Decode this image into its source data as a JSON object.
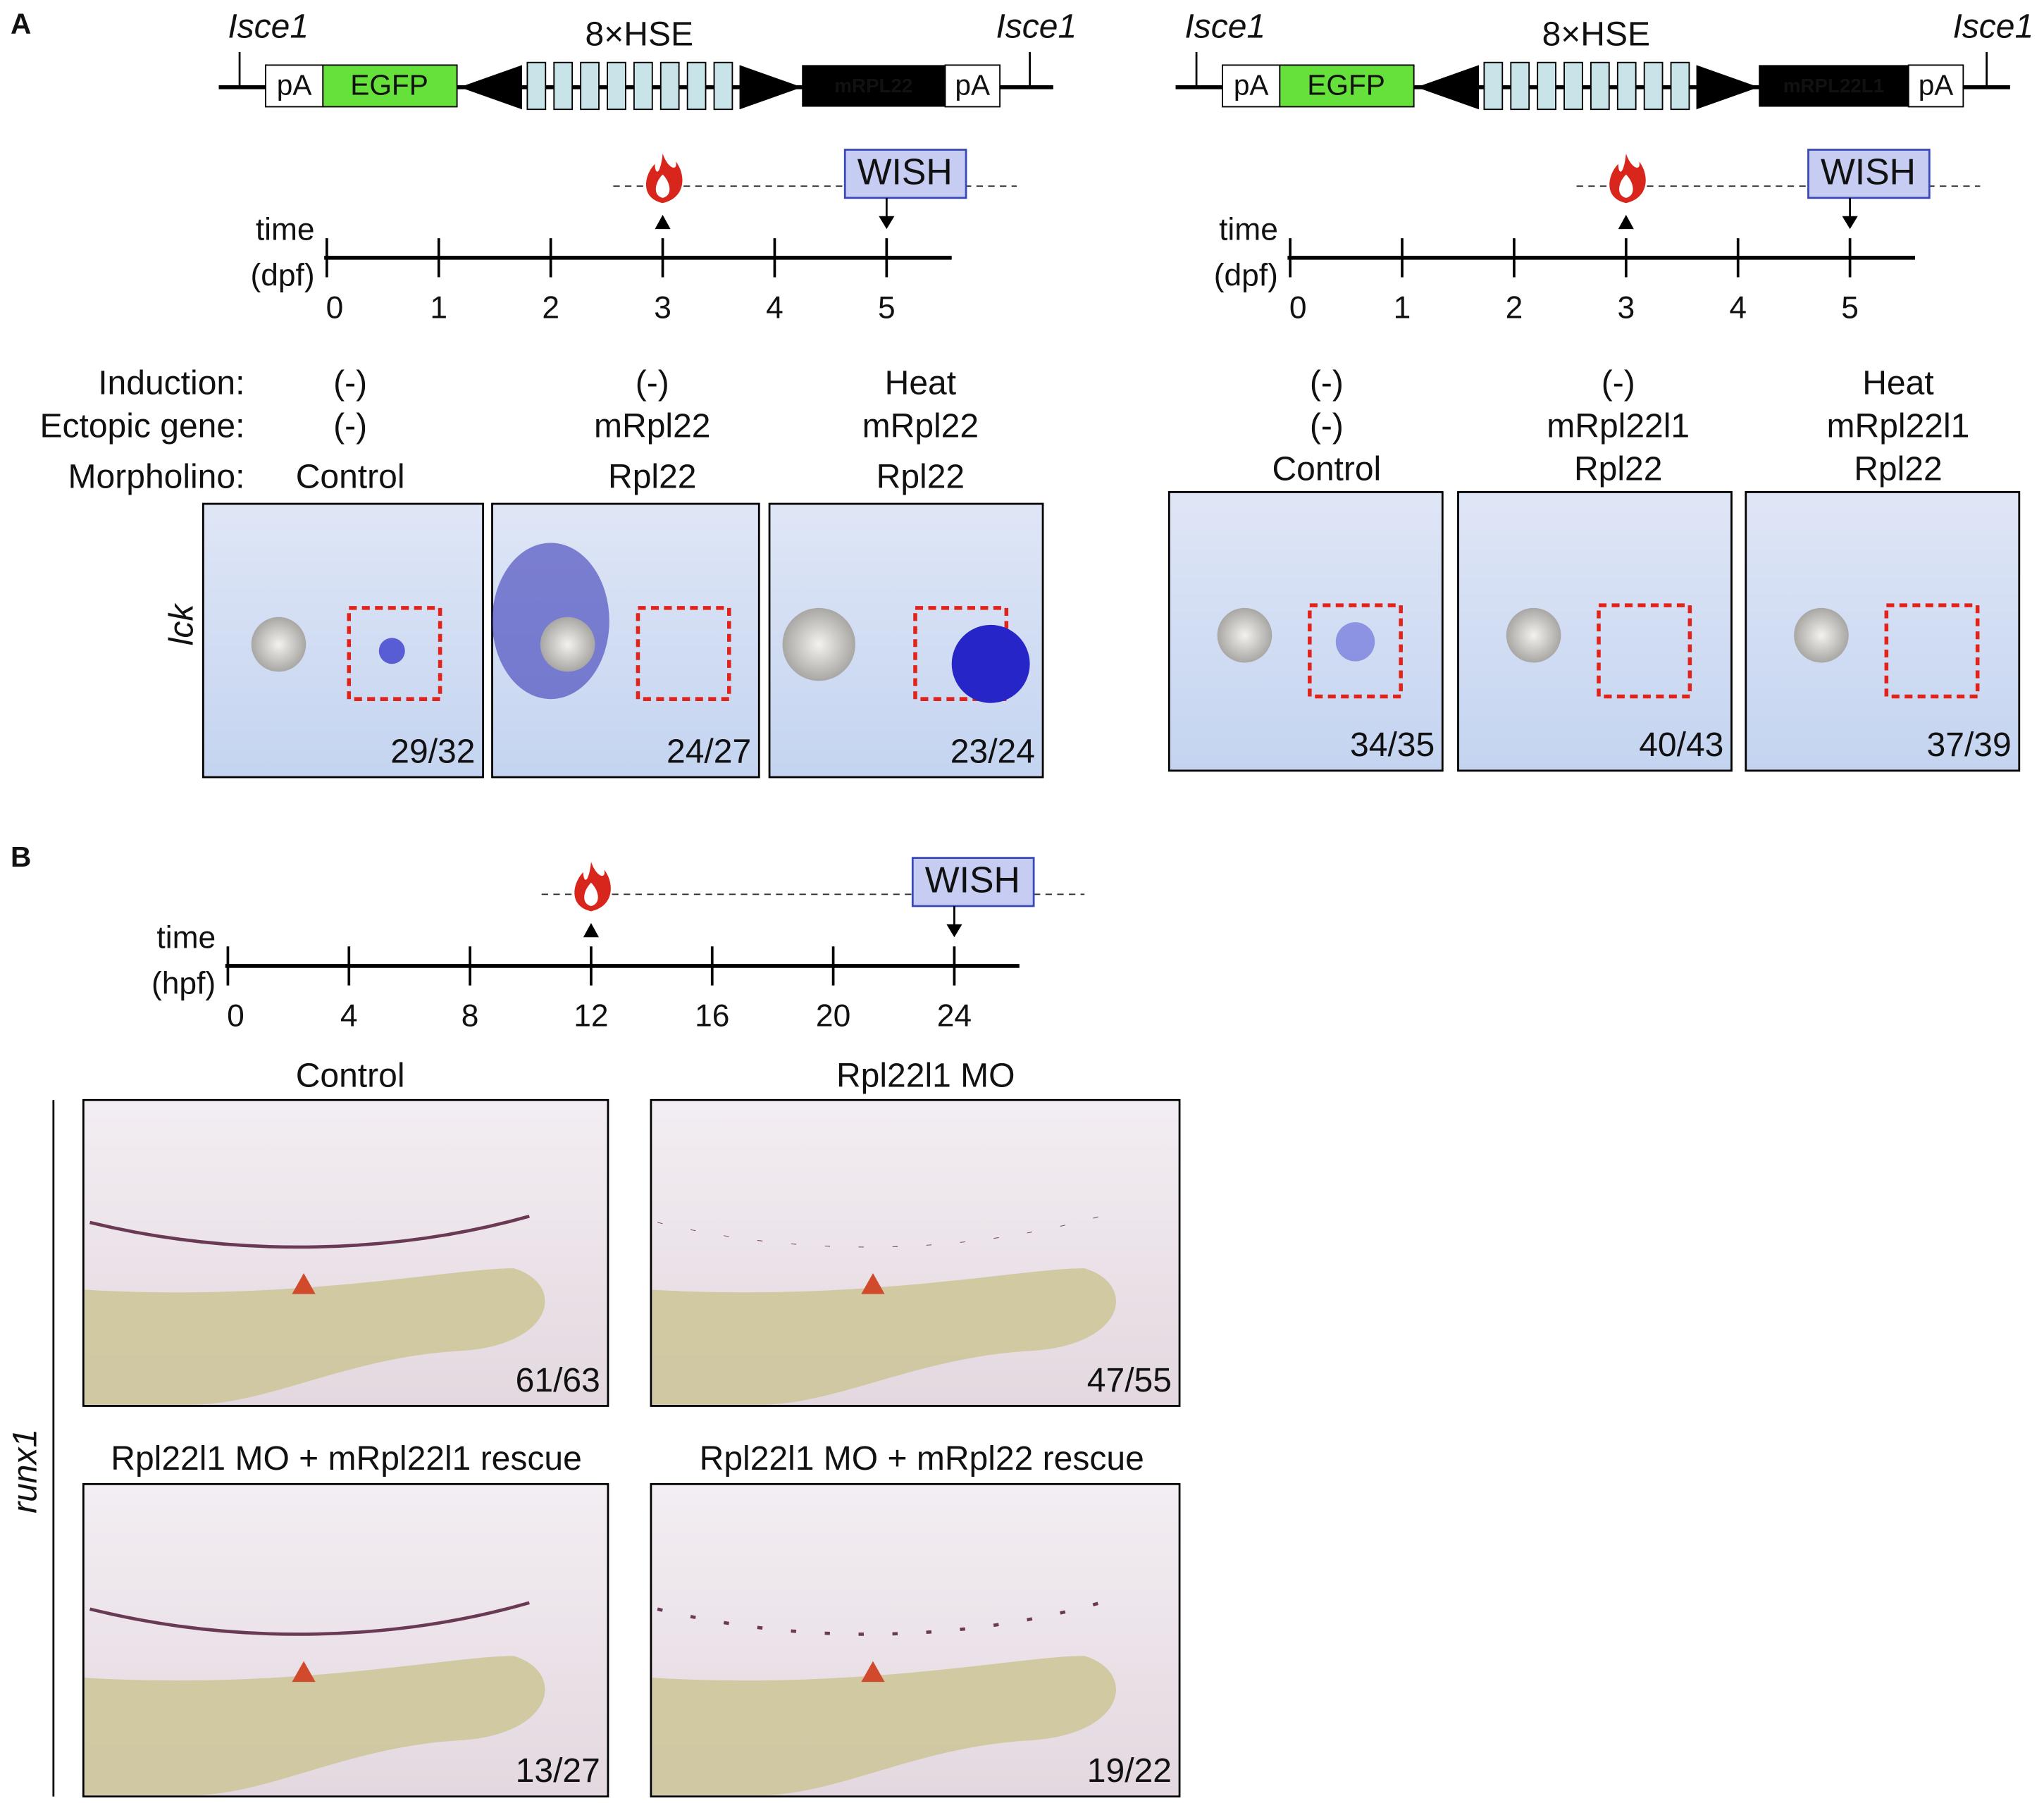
{
  "panel_a": {
    "label": "A",
    "constructs": [
      {
        "site_left": "Isce1",
        "site_right": "Isce1",
        "pa_left": "pA",
        "reporter": "EGFP",
        "promoter": "8×HSE",
        "gene": "mRPL22",
        "pa_right": "pA"
      },
      {
        "site_left": "Isce1",
        "site_right": "Isce1",
        "pa_left": "pA",
        "reporter": "EGFP",
        "promoter": "8×HSE",
        "gene": "mRPL22L1",
        "pa_right": "pA"
      }
    ],
    "timelines": [
      {
        "axis_label": [
          "time",
          "(dpf)"
        ],
        "ticks": [
          0,
          1,
          2,
          3,
          4,
          5
        ],
        "assay": "WISH"
      },
      {
        "axis_label": [
          "time",
          "(dpf)"
        ],
        "ticks": [
          0,
          1,
          2,
          3,
          4,
          5
        ],
        "assay": "WISH"
      }
    ],
    "row_labels": [
      "Induction:",
      "Ectopic gene:",
      "Morpholino:"
    ],
    "probe": "lck",
    "groups": [
      [
        {
          "conditions": [
            "(-)",
            "(-)",
            "Control"
          ],
          "count": "29/32"
        },
        {
          "conditions": [
            "(-)",
            "mRpl22",
            "Rpl22"
          ],
          "count": "24/27"
        },
        {
          "conditions": [
            "Heat",
            "mRpl22",
            "Rpl22"
          ],
          "count": "23/24"
        }
      ],
      [
        {
          "conditions": [
            "(-)",
            "(-)",
            "Control"
          ],
          "count": "34/35"
        },
        {
          "conditions": [
            "(-)",
            "mRpl22l1",
            "Rpl22"
          ],
          "count": "40/43"
        },
        {
          "conditions": [
            "Heat",
            "mRpl22l1",
            "Rpl22"
          ],
          "count": "37/39"
        }
      ]
    ]
  },
  "panel_b": {
    "label": "B",
    "timeline": {
      "axis_label": [
        "time",
        "(hpf)"
      ],
      "ticks": [
        0,
        4,
        8,
        12,
        16,
        20,
        24
      ],
      "assay": "WISH"
    },
    "probe": "runx1",
    "images": [
      {
        "title": "Control",
        "count": "61/63"
      },
      {
        "title": "Rpl22l1 MO",
        "count": "47/55"
      },
      {
        "title": "Rpl22l1 MO + mRpl22l1 rescue",
        "count": "13/27"
      },
      {
        "title": "Rpl22l1 MO + mRpl22 rescue",
        "count": "19/22"
      }
    ]
  }
}
